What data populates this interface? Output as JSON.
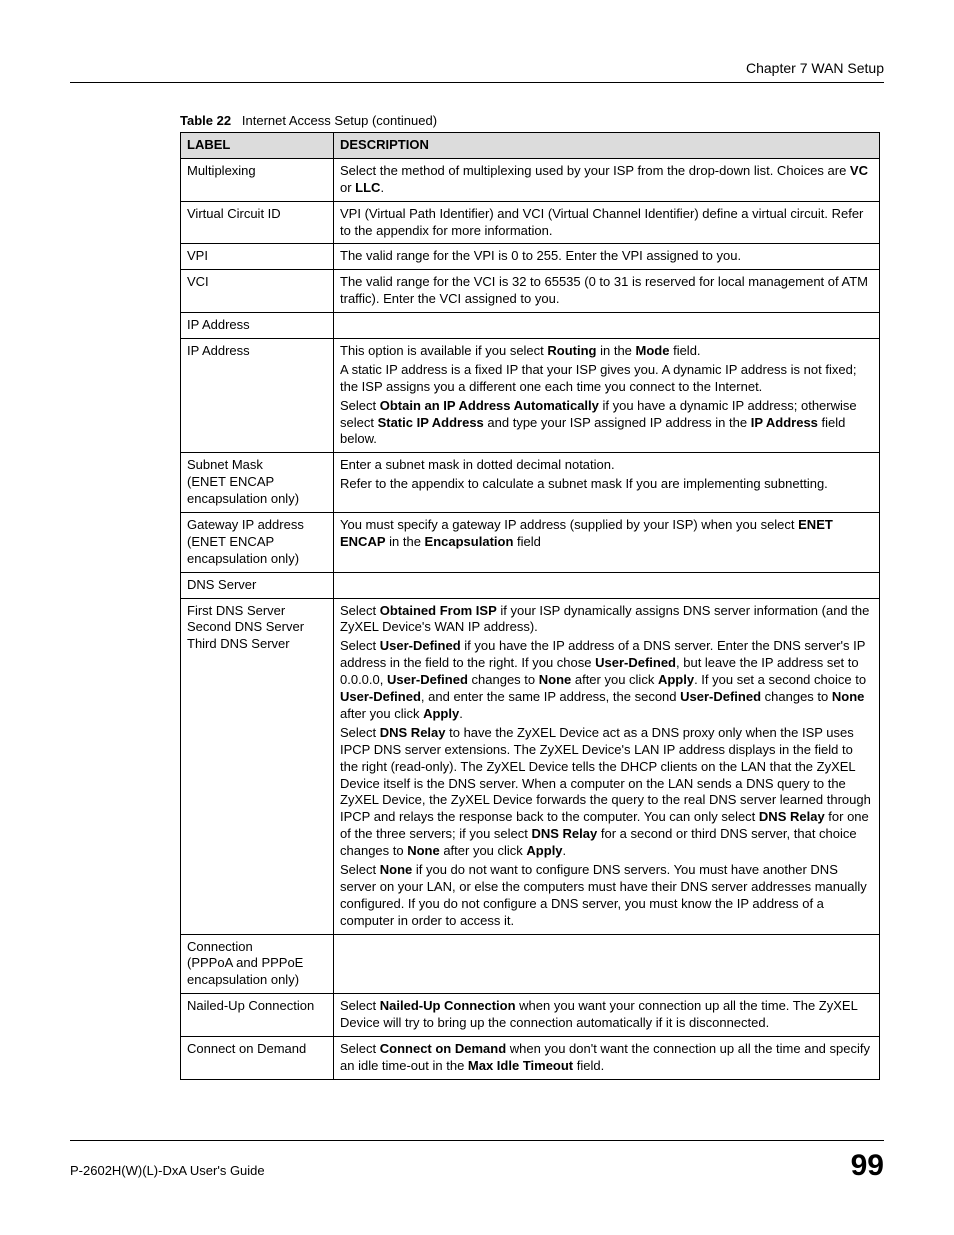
{
  "header": {
    "chapter": "Chapter 7 WAN Setup"
  },
  "caption": {
    "table_num": "Table 22",
    "title": "Internet Access Setup (continued)"
  },
  "table": {
    "headers": {
      "label": "LABEL",
      "description": "DESCRIPTION"
    },
    "rows": {
      "multiplexing": {
        "label": "Multiplexing",
        "p1a": "Select the method of multiplexing used by your ISP from the drop-down list. Choices are ",
        "p1b": "VC",
        "p1c": " or ",
        "p1d": "LLC",
        "p1e": "."
      },
      "vcid": {
        "label": "Virtual Circuit ID",
        "p1": "VPI (Virtual Path Identifier) and VCI (Virtual Channel Identifier) define a virtual circuit. Refer to the appendix for more information."
      },
      "vpi": {
        "label": "VPI",
        "p1": "The valid range for the VPI is 0 to 255. Enter the VPI assigned to you."
      },
      "vci": {
        "label": "VCI",
        "p1": "The valid range for the VCI is 32 to 65535 (0 to 31 is reserved for local management of ATM traffic). Enter the VCI assigned to you."
      },
      "ipaddr_section": {
        "label": "IP Address"
      },
      "ipaddr": {
        "label": "IP Address",
        "p1a": "This option is available if you select ",
        "p1b": "Routing",
        "p1c": " in the ",
        "p1d": "Mode",
        "p1e": " field.",
        "p2": "A static IP address is a fixed IP that your ISP gives you. A dynamic IP address is not fixed; the ISP assigns you a different one each time you connect to the Internet.",
        "p3a": "Select ",
        "p3b": "Obtain an IP Address Automatically",
        "p3c": " if you have a dynamic IP address; otherwise select ",
        "p3d": "Static IP Address",
        "p3e": " and type your ISP assigned IP address in the ",
        "p3f": "IP Address",
        "p3g": " field below."
      },
      "subnet": {
        "label1": "Subnet Mask",
        "label2": "(ENET ENCAP encapsulation only)",
        "p1": "Enter a subnet mask in dotted decimal notation.",
        "p2": "Refer to the appendix to calculate a subnet mask If you are implementing subnetting."
      },
      "gateway": {
        "label1": "Gateway IP address",
        "label2": "(ENET ENCAP encapsulation only)",
        "p1a": "You must specify a gateway IP address (supplied by your ISP) when you select ",
        "p1b": "ENET ENCAP",
        "p1c": " in the ",
        "p1d": "Encapsulation",
        "p1e": " field"
      },
      "dnsserver_section": {
        "label": "DNS Server"
      },
      "dns": {
        "label1": "First DNS Server",
        "label2": "Second DNS Server",
        "label3": "Third DNS Server",
        "p1a": "Select ",
        "p1b": "Obtained From ISP",
        "p1c": " if your ISP dynamically assigns DNS server information (and the ZyXEL Device's WAN IP address).",
        "p2a": "Select ",
        "p2b": "User-Defined",
        "p2c": " if you have the IP address of a DNS server. Enter the DNS server's IP address in the field to the right. If you chose ",
        "p2d": "User-Defined",
        "p2e": ", but leave the IP address set to 0.0.0.0, ",
        "p2f": "User-Defined",
        "p2g": " changes to ",
        "p2h": "None",
        "p2i": " after you click ",
        "p2j": "Apply",
        "p2k": ". If you set a second choice to ",
        "p2l": "User-Defined",
        "p2m": ", and enter the same IP address, the second ",
        "p2n": "User-Defined",
        "p2o": " changes to ",
        "p2p": "None",
        "p2q": " after you click ",
        "p2r": "Apply",
        "p2s": ".",
        "p3a": "Select ",
        "p3b": "DNS Relay",
        "p3c": " to have the ZyXEL Device act as a DNS proxy only when the ISP uses IPCP DNS server extensions. The ZyXEL Device's LAN IP address displays in the field to the right (read-only). The ZyXEL Device tells the DHCP clients on the LAN that the ZyXEL Device itself is the DNS server. When a computer on the LAN sends a DNS query to the ZyXEL Device, the ZyXEL Device forwards the query to the real DNS server learned through IPCP and relays the response back to the computer. You can only select ",
        "p3d": "DNS Relay",
        "p3e": " for one of the three servers; if you select ",
        "p3f": "DNS Relay",
        "p3g": " for a second or third DNS server, that choice changes to ",
        "p3h": "None",
        "p3i": " after you click ",
        "p3j": "Apply",
        "p3k": ".",
        "p4a": "Select ",
        "p4b": "None",
        "p4c": " if you do not want to configure DNS servers. You must have another DNS server on your LAN, or else the computers must have their DNS server addresses manually configured. If you do not configure a DNS server, you must know the IP address of a computer in order to access it."
      },
      "connection": {
        "label1": "Connection",
        "label2": "(PPPoA and PPPoE encapsulation only)"
      },
      "nailed": {
        "label": "Nailed-Up Connection",
        "p1a": "Select ",
        "p1b": "Nailed-Up Connection",
        "p1c": " when you want your connection up all the time. The ZyXEL Device will try to bring up the connection automatically if it is disconnected."
      },
      "demand": {
        "label": "Connect on Demand",
        "p1a": "Select ",
        "p1b": "Connect on Demand",
        "p1c": " when you don't want the connection up all the time and specify an idle time-out in the ",
        "p1d": "Max Idle Timeout",
        "p1e": " field."
      }
    }
  },
  "footer": {
    "guide": "P-2602H(W)(L)-DxA User's Guide",
    "page": "99"
  }
}
